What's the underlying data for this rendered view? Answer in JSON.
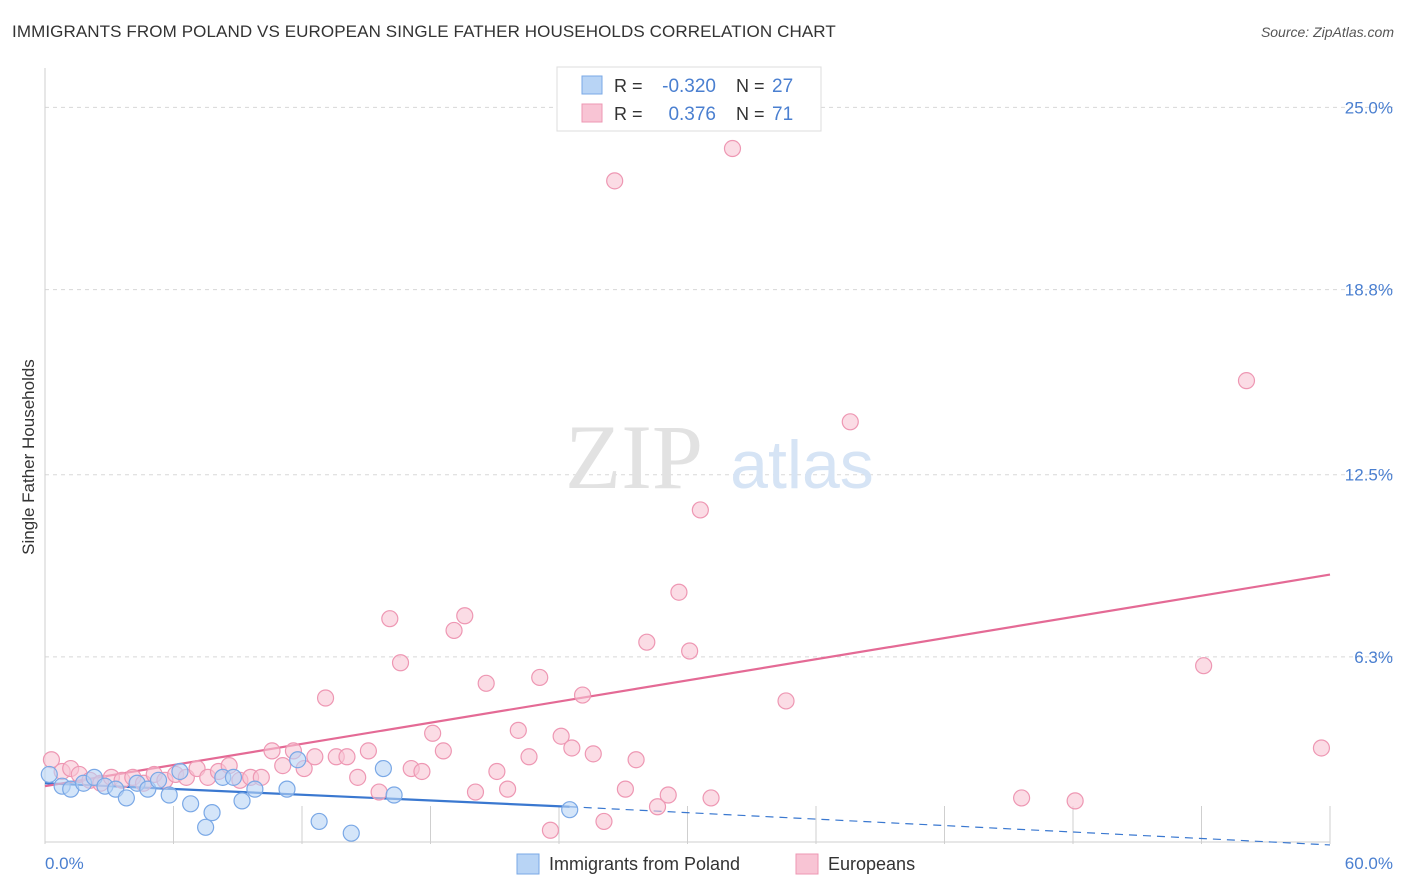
{
  "title": "IMMIGRANTS FROM POLAND VS EUROPEAN SINGLE FATHER HOUSEHOLDS CORRELATION CHART",
  "source": "Source: ZipAtlas.com",
  "watermark": {
    "zip": "ZIP",
    "atlas": "atlas"
  },
  "colors": {
    "poland_fill": "#b8d4f5",
    "poland_stroke": "#7aa8e6",
    "poland_line": "#3a78d0",
    "europe_fill": "#f8c4d4",
    "europe_stroke": "#ee97b3",
    "europe_line": "#e46a95",
    "tick_text": "#4a7fd0",
    "grid": "#d8d8d8"
  },
  "legend": {
    "rows": [
      {
        "r_label": "R =",
        "r_value": "-0.320",
        "n_label": "N =",
        "n_value": "27"
      },
      {
        "r_label": "R =",
        "r_value": "0.376",
        "n_label": "N =",
        "n_value": "71"
      }
    ]
  },
  "bottom_legend": [
    "Immigrants from Poland",
    "Europeans"
  ],
  "chart_data": {
    "type": "scatter",
    "xlabel": "",
    "ylabel": "Single Father Households",
    "xlim": [
      0,
      60
    ],
    "ylim": [
      0,
      26
    ],
    "x_tick_labels": [
      {
        "value": 0,
        "label": "0.0%"
      },
      {
        "value": 60,
        "label": "60.0%"
      }
    ],
    "y_tick_labels": [
      {
        "value": 6.3,
        "label": "6.3%"
      },
      {
        "value": 12.5,
        "label": "12.5%"
      },
      {
        "value": 18.8,
        "label": "18.8%"
      },
      {
        "value": 25.0,
        "label": "25.0%"
      }
    ],
    "grid": true,
    "series": [
      {
        "name": "Immigrants from Poland",
        "r": -0.32,
        "n": 27,
        "trend": {
          "x0": 0,
          "y0": 2.0,
          "x1": 24.5,
          "y1": 1.2,
          "dash_to_x": 60,
          "dash_to_y": -0.1
        },
        "points": [
          [
            0.2,
            2.3
          ],
          [
            0.8,
            1.9
          ],
          [
            1.2,
            1.8
          ],
          [
            1.8,
            2.0
          ],
          [
            2.3,
            2.2
          ],
          [
            2.8,
            1.9
          ],
          [
            3.3,
            1.8
          ],
          [
            3.8,
            1.5
          ],
          [
            4.3,
            2.0
          ],
          [
            4.8,
            1.8
          ],
          [
            5.3,
            2.1
          ],
          [
            5.8,
            1.6
          ],
          [
            6.3,
            2.4
          ],
          [
            6.8,
            1.3
          ],
          [
            7.5,
            0.5
          ],
          [
            7.8,
            1.0
          ],
          [
            8.3,
            2.2
          ],
          [
            8.8,
            2.2
          ],
          [
            9.2,
            1.4
          ],
          [
            9.8,
            1.8
          ],
          [
            11.3,
            1.8
          ],
          [
            11.8,
            2.8
          ],
          [
            12.8,
            0.7
          ],
          [
            14.3,
            0.3
          ],
          [
            15.8,
            2.5
          ],
          [
            16.3,
            1.6
          ],
          [
            24.5,
            1.1
          ]
        ]
      },
      {
        "name": "Europeans",
        "r": 0.376,
        "n": 71,
        "trend": {
          "x0": 0,
          "y0": 1.9,
          "x1": 60,
          "y1": 9.1
        },
        "points": [
          [
            0.3,
            2.8
          ],
          [
            0.8,
            2.4
          ],
          [
            1.2,
            2.5
          ],
          [
            1.6,
            2.3
          ],
          [
            2.1,
            2.1
          ],
          [
            2.6,
            2.0
          ],
          [
            3.1,
            2.2
          ],
          [
            3.6,
            2.1
          ],
          [
            4.1,
            2.2
          ],
          [
            4.6,
            2.0
          ],
          [
            5.1,
            2.3
          ],
          [
            5.6,
            2.1
          ],
          [
            6.1,
            2.3
          ],
          [
            6.6,
            2.2
          ],
          [
            7.1,
            2.5
          ],
          [
            7.6,
            2.2
          ],
          [
            8.1,
            2.4
          ],
          [
            8.6,
            2.6
          ],
          [
            9.1,
            2.1
          ],
          [
            9.6,
            2.2
          ],
          [
            10.1,
            2.2
          ],
          [
            10.6,
            3.1
          ],
          [
            11.1,
            2.6
          ],
          [
            11.6,
            3.1
          ],
          [
            12.1,
            2.5
          ],
          [
            12.6,
            2.9
          ],
          [
            13.1,
            4.9
          ],
          [
            13.6,
            2.9
          ],
          [
            14.1,
            2.9
          ],
          [
            14.6,
            2.2
          ],
          [
            15.1,
            3.1
          ],
          [
            15.6,
            1.7
          ],
          [
            16.1,
            7.6
          ],
          [
            16.6,
            6.1
          ],
          [
            17.1,
            2.5
          ],
          [
            17.6,
            2.4
          ],
          [
            18.1,
            3.7
          ],
          [
            18.6,
            3.1
          ],
          [
            19.1,
            7.2
          ],
          [
            19.6,
            7.7
          ],
          [
            20.1,
            1.7
          ],
          [
            20.6,
            5.4
          ],
          [
            21.1,
            2.4
          ],
          [
            21.6,
            1.8
          ],
          [
            22.1,
            3.8
          ],
          [
            22.6,
            2.9
          ],
          [
            23.1,
            5.6
          ],
          [
            23.6,
            0.4
          ],
          [
            24.1,
            3.6
          ],
          [
            24.6,
            3.2
          ],
          [
            25.1,
            5.0
          ],
          [
            25.6,
            3.0
          ],
          [
            26.1,
            0.7
          ],
          [
            26.6,
            22.5
          ],
          [
            27.1,
            1.8
          ],
          [
            27.6,
            2.8
          ],
          [
            28.1,
            6.8
          ],
          [
            28.6,
            1.2
          ],
          [
            29.1,
            1.6
          ],
          [
            29.6,
            8.5
          ],
          [
            30.1,
            6.5
          ],
          [
            30.6,
            11.3
          ],
          [
            31.1,
            1.5
          ],
          [
            32.1,
            23.6
          ],
          [
            34.6,
            4.8
          ],
          [
            37.6,
            14.3
          ],
          [
            45.6,
            1.5
          ],
          [
            48.1,
            1.4
          ],
          [
            54.1,
            6.0
          ],
          [
            56.1,
            15.7
          ],
          [
            59.6,
            3.2
          ]
        ]
      }
    ]
  }
}
